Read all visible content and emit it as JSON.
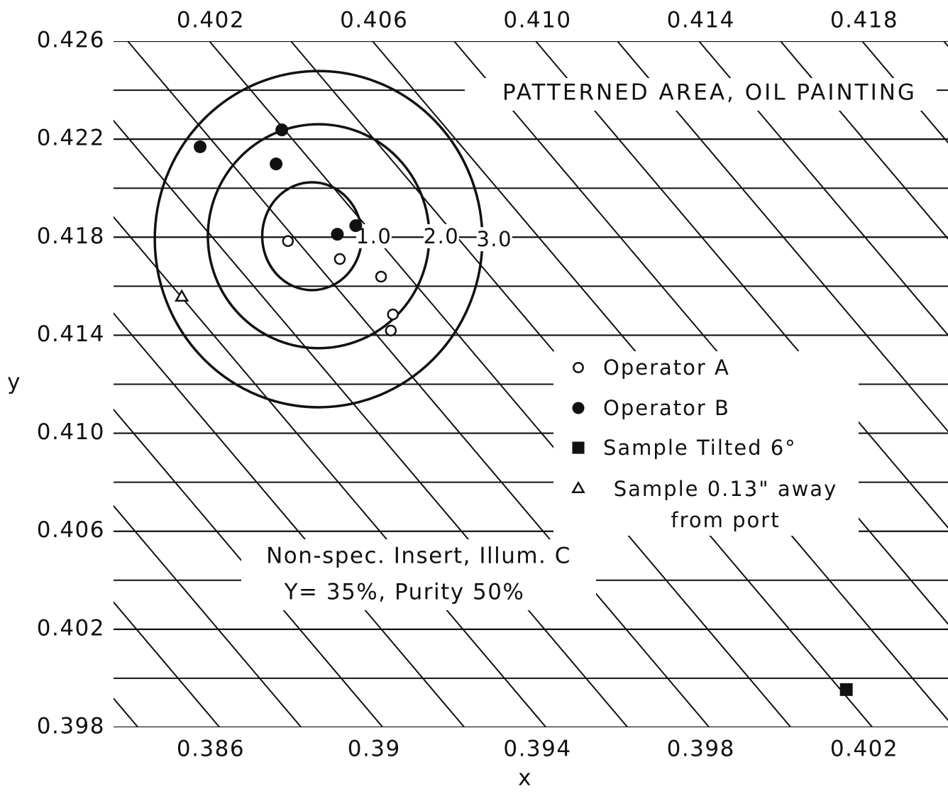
{
  "chart_data": {
    "type": "scatter",
    "x_label": "x",
    "y_label": "y",
    "xlim": [
      0.38362,
      0.40405
    ],
    "xticks": [
      0.386,
      0.39,
      0.394,
      0.398,
      0.402
    ],
    "x2lim": [
      0.39962,
      0.42005
    ],
    "x2ticks": [
      0.402,
      0.406,
      {
        "value": 0.41,
        "label": "0.410"
      },
      0.414,
      0.418
    ],
    "ylim": [
      0.398,
      0.426
    ],
    "yticks": [
      0.398,
      0.402,
      0.406,
      {
        "value": 0.41,
        "label": "0.410"
      },
      0.414,
      0.418,
      0.422,
      0.426
    ],
    "series": [
      {
        "name": "Operator A",
        "marker": "open-circle",
        "color": "#111111",
        "x": [
          0.38789,
          0.38916,
          0.39017,
          0.39046,
          0.39041
        ],
        "values": [
          0.41784,
          0.41711,
          0.41639,
          0.41485,
          0.41419
        ]
      },
      {
        "name": "Operator B",
        "marker": "filled-circle",
        "color": "#111111",
        "x": [
          0.38574,
          0.38774,
          0.3876,
          0.3891,
          0.38955
        ],
        "values": [
          0.42169,
          0.42238,
          0.42099,
          0.41812,
          0.41847
        ]
      },
      {
        "name": "Sample Tilted 6°",
        "marker": "filled-square",
        "color": "#111111",
        "x": [
          0.40156
        ],
        "values": [
          0.39954
        ]
      },
      {
        "name": "Sample 0.13\" away from port",
        "marker": "open-triangle",
        "color": "#111111",
        "x": [
          0.38529
        ],
        "values": [
          0.41558
        ]
      }
    ],
    "ellipses": [
      {
        "label": "1.0",
        "cx": 0.38848,
        "cy": 0.41804,
        "rx": 0.00122,
        "ry": 0.0022
      },
      {
        "label": "2.0",
        "cx": 0.38864,
        "cy": 0.41804,
        "rx": 0.00271,
        "ry": 0.00457
      },
      {
        "label": "3.0",
        "cx": 0.38864,
        "cy": 0.41792,
        "rx": 0.00401,
        "ry": 0.00686
      }
    ],
    "annotations": [
      "PATTERNED AREA, OIL PAINTING",
      "Non-spec. Insert, Illum. C",
      "Y= 35%, Purity 50%"
    ]
  }
}
